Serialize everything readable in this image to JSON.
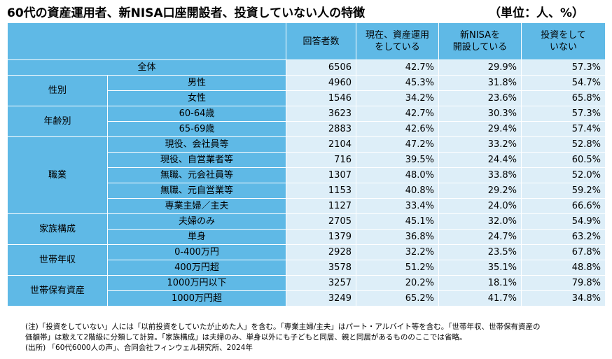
{
  "title": "60代の資産運用者、新NISA口座開設者、投資していない人の特徴",
  "unit": "（単位：人、%）",
  "headers": [
    "回答者数",
    "現在、資産運用\nをしている",
    "新NISAを\n開設している",
    "投資をして\nいない"
  ],
  "groups": {
    "all": "全体",
    "sex": "性別",
    "age": "年齢別",
    "job": "職業",
    "family": "家族構成",
    "income": "世帯年収",
    "assets": "世帯保有資産"
  },
  "rows": [
    {
      "label": "全体",
      "n": "6506",
      "invest": "42.7%",
      "nisa": "29.9%",
      "none": "57.3%"
    },
    {
      "label": "男性",
      "n": "4960",
      "invest": "45.3%",
      "nisa": "31.8%",
      "none": "54.7%"
    },
    {
      "label": "女性",
      "n": "1546",
      "invest": "34.2%",
      "nisa": "23.6%",
      "none": "65.8%"
    },
    {
      "label": "60-64歳",
      "n": "3623",
      "invest": "42.7%",
      "nisa": "30.3%",
      "none": "57.3%"
    },
    {
      "label": "65-69歳",
      "n": "2883",
      "invest": "42.6%",
      "nisa": "29.4%",
      "none": "57.4%"
    },
    {
      "label": "現役、会社員等",
      "n": "2104",
      "invest": "47.2%",
      "nisa": "33.2%",
      "none": "52.8%"
    },
    {
      "label": "現役、自営業者等",
      "n": "716",
      "invest": "39.5%",
      "nisa": "24.4%",
      "none": "60.5%"
    },
    {
      "label": "無職、元会社員等",
      "n": "1307",
      "invest": "48.0%",
      "nisa": "33.8%",
      "none": "52.0%"
    },
    {
      "label": "無職、元自営業等",
      "n": "1153",
      "invest": "40.8%",
      "nisa": "29.2%",
      "none": "59.2%"
    },
    {
      "label": "専業主婦／主夫",
      "n": "1127",
      "invest": "33.4%",
      "nisa": "24.0%",
      "none": "66.6%"
    },
    {
      "label": "夫婦のみ",
      "n": "2705",
      "invest": "45.1%",
      "nisa": "32.0%",
      "none": "54.9%"
    },
    {
      "label": "単身",
      "n": "1379",
      "invest": "36.8%",
      "nisa": "24.7%",
      "none": "63.2%"
    },
    {
      "label": "0-400万円",
      "n": "2928",
      "invest": "32.2%",
      "nisa": "23.5%",
      "none": "67.8%"
    },
    {
      "label": "400万円超",
      "n": "3578",
      "invest": "51.2%",
      "nisa": "35.1%",
      "none": "48.8%"
    },
    {
      "label": "1000万円以下",
      "n": "3257",
      "invest": "20.2%",
      "nisa": "18.1%",
      "none": "79.8%"
    },
    {
      "label": "1000万円超",
      "n": "3249",
      "invest": "65.2%",
      "nisa": "41.7%",
      "none": "34.8%"
    }
  ],
  "notes": [
    "(注)「投資をしていない」人には「以前投資をしていたが止めた人」を含む。「専業主婦/主夫」はパート・アルバイト等を含む。「世帯年収、世帯保有資産の",
    "価額帯」は敢えて2階級に分類して計算。「家族構成」は夫婦のみ、単身以外にも子どもと同居、親と同居があるもののここでは省略。",
    "(出所) 「60代6000人の声」、合同会社フィンウェル研究所、2024年"
  ],
  "colors": {
    "header_bg": "#5fb9e6",
    "cell_bg": "#ddeef8"
  }
}
